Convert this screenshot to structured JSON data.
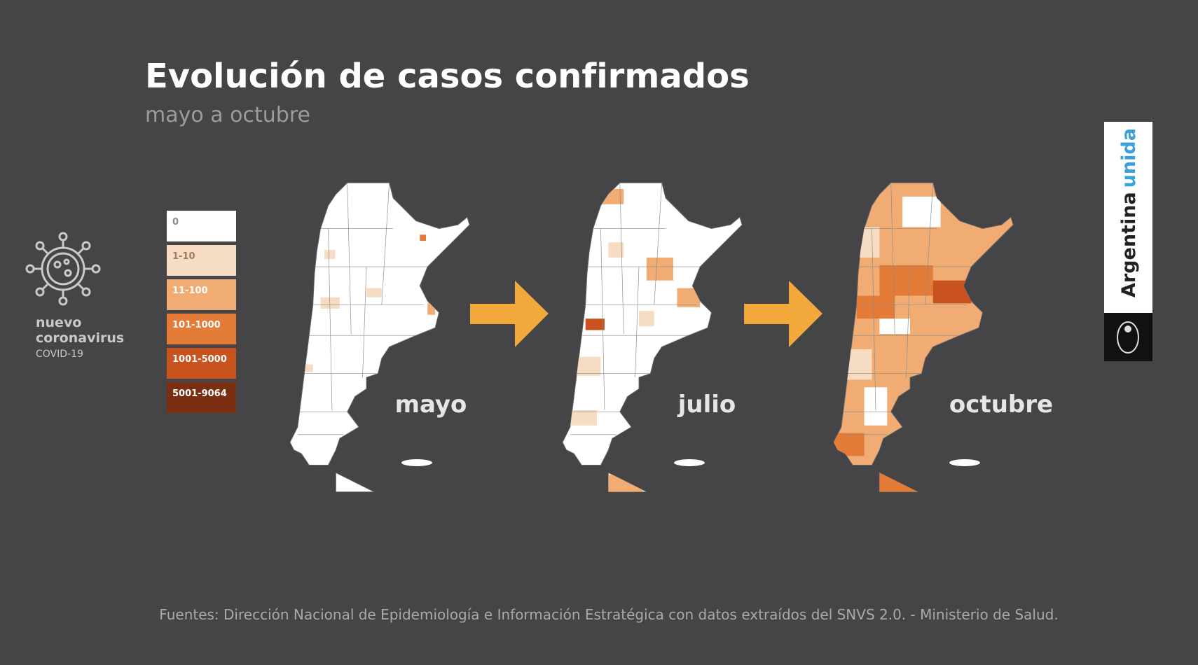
{
  "header": {
    "title": "Evolución de casos confirmados",
    "subtitle": "mayo a octubre"
  },
  "brand": {
    "line1": "nuevo",
    "line2": "coronavirus",
    "line3": "COVID-19"
  },
  "legend": {
    "items": [
      {
        "label": "0",
        "color": "#ffffff"
      },
      {
        "label": "1-10",
        "color": "#f6dcc2"
      },
      {
        "label": "11-100",
        "color": "#f0ac72"
      },
      {
        "label": "101-1000",
        "color": "#e47c38"
      },
      {
        "label": "1001-5000",
        "color": "#c8531f"
      },
      {
        "label": "5001-9064",
        "color": "#7a2f13"
      }
    ]
  },
  "maps": [
    {
      "label": "mayo"
    },
    {
      "label": "julio"
    },
    {
      "label": "octubre"
    }
  ],
  "badge": {
    "word1": "Argentina",
    "word2": "unida"
  },
  "footer": {
    "source": "Fuentes: Dirección Nacional de Epidemiología e Información Estratégica con datos extraídos del SNVS 2.0. - Ministerio de Salud."
  }
}
